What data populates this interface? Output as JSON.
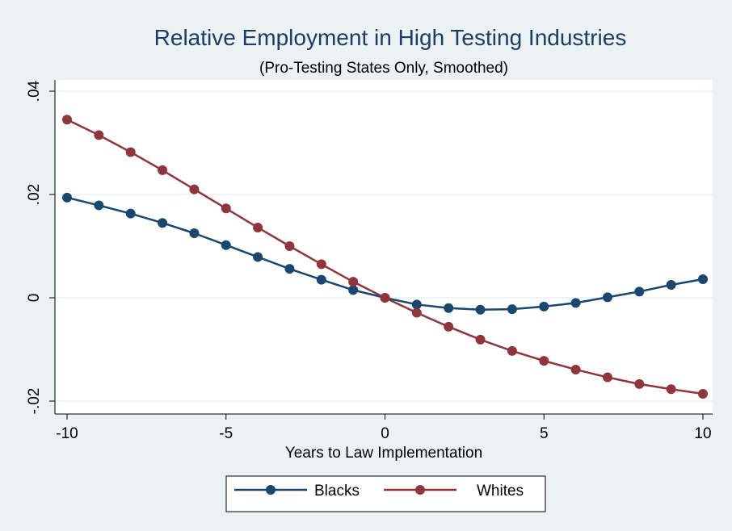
{
  "chart_data": {
    "type": "line",
    "title": "Relative Employment in High Testing Industries",
    "subtitle": "(Pro-Testing States Only, Smoothed)",
    "xlabel": "Years to Law Implementation",
    "ylabel": "",
    "xlim": [
      -10,
      10
    ],
    "ylim": [
      -0.02,
      0.04
    ],
    "x_ticks": [
      -10,
      -5,
      0,
      5,
      10
    ],
    "x_tick_labels": [
      "-10",
      "-5",
      "0",
      "5",
      "10"
    ],
    "y_ticks": [
      -0.02,
      0,
      0.02,
      0.04
    ],
    "y_tick_labels": [
      "-.02",
      "0",
      ".02",
      ".04"
    ],
    "grid": true,
    "legend_position": "bottom",
    "x": [
      -10,
      -9,
      -8,
      -7,
      -6,
      -5,
      -4,
      -3,
      -2,
      -1,
      0,
      1,
      2,
      3,
      4,
      5,
      6,
      7,
      8,
      9,
      10
    ],
    "series": [
      {
        "name": "Blacks",
        "color": "#1a476f",
        "values": [
          0.0194,
          0.0179,
          0.0163,
          0.0145,
          0.0125,
          0.0102,
          0.0079,
          0.0056,
          0.0035,
          0.0015,
          0.0,
          -0.0013,
          -0.002,
          -0.0023,
          -0.0022,
          -0.0017,
          -0.001,
          0.0001,
          0.0012,
          0.0025,
          0.0036
        ]
      },
      {
        "name": "Whites",
        "color": "#90353b",
        "values": [
          0.0345,
          0.0315,
          0.0282,
          0.0247,
          0.021,
          0.0173,
          0.0136,
          0.01,
          0.0065,
          0.0031,
          0.0,
          -0.0029,
          -0.0056,
          -0.0081,
          -0.0103,
          -0.0122,
          -0.0139,
          -0.0154,
          -0.0167,
          -0.0177,
          -0.0186
        ]
      }
    ]
  },
  "colors": {
    "background": "#eaf2f3",
    "plot_background": "#ffffff",
    "title": "#1e3b66",
    "grid": "#eaf2f3"
  }
}
